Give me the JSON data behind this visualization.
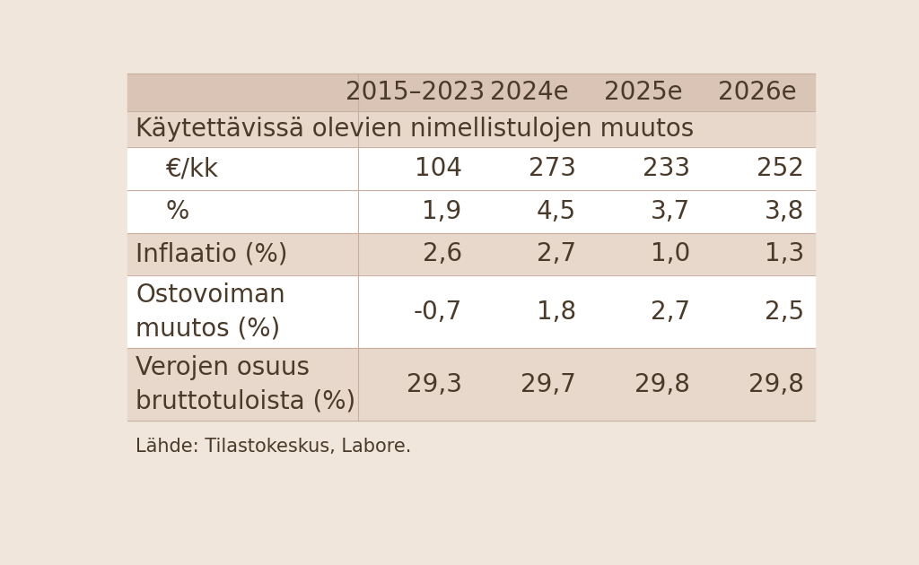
{
  "bg_color": "#f0e6dc",
  "header_bg": "#d9c4b5",
  "row_shaded_bg": "#e8d8cc",
  "row_white_bg": "#ffffff",
  "text_color": "#4a3a2a",
  "col_headers": [
    "2015–2023",
    "2024e",
    "2025e",
    "2026e"
  ],
  "section_header": "Käytettävissä olevien nimellistulojen muutos",
  "rows": [
    {
      "label": "€/kk",
      "indent": true,
      "values": [
        "104",
        "273",
        "233",
        "252"
      ],
      "shaded": false
    },
    {
      "label": "%",
      "indent": true,
      "values": [
        "1,9",
        "4,5",
        "3,7",
        "3,8"
      ],
      "shaded": false
    },
    {
      "label": "Inflaatio (%)",
      "indent": false,
      "values": [
        "2,6",
        "2,7",
        "1,0",
        "1,3"
      ],
      "shaded": true
    },
    {
      "label": "Ostovoiman\nmuutos (%)",
      "indent": false,
      "values": [
        "-0,7",
        "1,8",
        "2,7",
        "2,5"
      ],
      "shaded": false
    },
    {
      "label": "Verojen osuus\nbruttotuloista (%)",
      "indent": false,
      "values": [
        "29,3",
        "29,7",
        "29,8",
        "29,8"
      ],
      "shaded": true
    }
  ],
  "footer": "Lähde: Tilastokeskus, Labore.",
  "col_header_fontsize": 20,
  "section_fontsize": 20,
  "body_fontsize": 20,
  "footer_fontsize": 15,
  "line_color": "#c8b0a0"
}
